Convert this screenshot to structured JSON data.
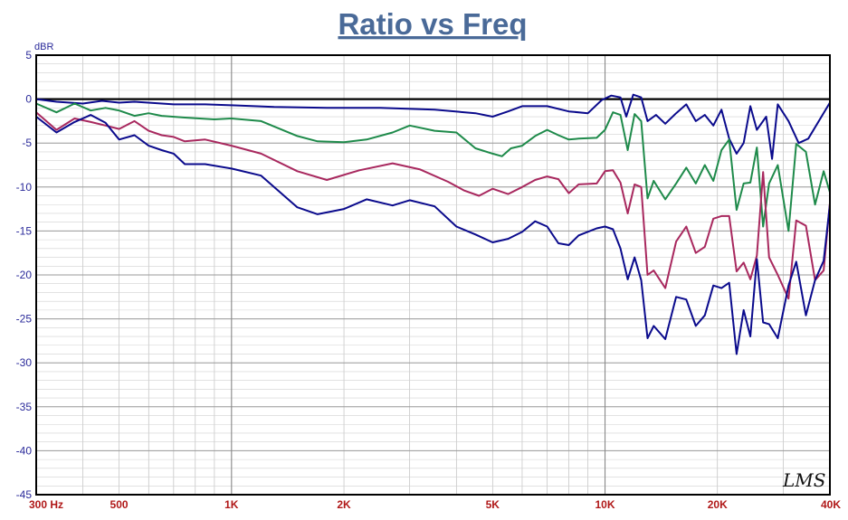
{
  "chart_data": {
    "type": "line",
    "title": "Ratio vs Freq",
    "ylabel": "dBR",
    "xlabel": "",
    "x_scale": "log",
    "xlim": [
      300,
      40000
    ],
    "ylim": [
      -45,
      5
    ],
    "grid": true,
    "y_ticks": [
      "5",
      "0",
      "-5",
      "-10",
      "-15",
      "-20",
      "-25",
      "-30",
      "-35",
      "-40",
      "-45"
    ],
    "x_ticks": [
      {
        "value": 300,
        "label": "300  Hz"
      },
      {
        "value": 500,
        "label": "500"
      },
      {
        "value": 1000,
        "label": "1K"
      },
      {
        "value": 2000,
        "label": "2K"
      },
      {
        "value": 5000,
        "label": "5K"
      },
      {
        "value": 10000,
        "label": "10K"
      },
      {
        "value": 20000,
        "label": "20K"
      },
      {
        "value": 40000,
        "label": "40K"
      }
    ],
    "logo_text": "LMS",
    "colors": {
      "title": "#4a6a98",
      "axis_labels": "#2a2a9a",
      "x_tick_labels": "#b01818",
      "grid": "#b4b4b4"
    },
    "series": [
      {
        "color": "#0a0a8c",
        "values": [
          [
            300,
            0
          ],
          [
            340,
            -0.3
          ],
          [
            400,
            -0.5
          ],
          [
            450,
            -0.2
          ],
          [
            500,
            -0.4
          ],
          [
            550,
            -0.3
          ],
          [
            700,
            -0.6
          ],
          [
            850,
            -0.6
          ],
          [
            1000,
            -0.7
          ],
          [
            1300,
            -0.9
          ],
          [
            1800,
            -1.0
          ],
          [
            2500,
            -1.0
          ],
          [
            3500,
            -1.2
          ],
          [
            4500,
            -1.6
          ],
          [
            5000,
            -2.0
          ],
          [
            5500,
            -1.4
          ],
          [
            6000,
            -0.8
          ],
          [
            7000,
            -0.8
          ],
          [
            8000,
            -1.4
          ],
          [
            9000,
            -1.6
          ],
          [
            9800,
            -0.1
          ],
          [
            10400,
            0.4
          ],
          [
            11000,
            0.2
          ],
          [
            11400,
            -2.0
          ],
          [
            11900,
            0.5
          ],
          [
            12500,
            0.2
          ],
          [
            13000,
            -2.5
          ],
          [
            13700,
            -1.8
          ],
          [
            14500,
            -2.8
          ],
          [
            15500,
            -1.6
          ],
          [
            16500,
            -0.6
          ],
          [
            17500,
            -2.5
          ],
          [
            18500,
            -1.8
          ],
          [
            19500,
            -3.0
          ],
          [
            20500,
            -1.2
          ],
          [
            21500,
            -4.5
          ],
          [
            22500,
            -6.2
          ],
          [
            23500,
            -5.0
          ],
          [
            24500,
            -0.8
          ],
          [
            25500,
            -3.5
          ],
          [
            27000,
            -2.0
          ],
          [
            28000,
            -6.8
          ],
          [
            29000,
            -0.6
          ],
          [
            31000,
            -2.5
          ],
          [
            33000,
            -5.0
          ],
          [
            35000,
            -4.5
          ],
          [
            40000,
            -0.4
          ]
        ]
      },
      {
        "color": "#1e8a4a",
        "values": [
          [
            300,
            -0.5
          ],
          [
            340,
            -1.5
          ],
          [
            380,
            -0.5
          ],
          [
            420,
            -1.3
          ],
          [
            460,
            -1.0
          ],
          [
            500,
            -1.3
          ],
          [
            550,
            -1.9
          ],
          [
            600,
            -1.6
          ],
          [
            650,
            -1.9
          ],
          [
            750,
            -2.1
          ],
          [
            900,
            -2.3
          ],
          [
            1000,
            -2.2
          ],
          [
            1200,
            -2.5
          ],
          [
            1500,
            -4.2
          ],
          [
            1700,
            -4.8
          ],
          [
            2000,
            -4.9
          ],
          [
            2300,
            -4.6
          ],
          [
            2700,
            -3.8
          ],
          [
            3000,
            -3.0
          ],
          [
            3500,
            -3.6
          ],
          [
            4000,
            -3.8
          ],
          [
            4500,
            -5.6
          ],
          [
            5000,
            -6.2
          ],
          [
            5300,
            -6.5
          ],
          [
            5600,
            -5.6
          ],
          [
            6000,
            -5.3
          ],
          [
            6500,
            -4.2
          ],
          [
            7000,
            -3.5
          ],
          [
            7500,
            -4.1
          ],
          [
            8000,
            -4.6
          ],
          [
            8500,
            -4.5
          ],
          [
            9500,
            -4.4
          ],
          [
            10000,
            -3.5
          ],
          [
            10500,
            -1.5
          ],
          [
            11000,
            -1.8
          ],
          [
            11500,
            -5.8
          ],
          [
            12000,
            -1.7
          ],
          [
            12500,
            -2.5
          ],
          [
            13000,
            -11.3
          ],
          [
            13500,
            -9.3
          ],
          [
            14500,
            -11.4
          ],
          [
            15500,
            -9.6
          ],
          [
            16500,
            -7.8
          ],
          [
            17500,
            -9.6
          ],
          [
            18500,
            -7.5
          ],
          [
            19500,
            -9.3
          ],
          [
            20500,
            -5.8
          ],
          [
            21500,
            -4.6
          ],
          [
            22500,
            -12.6
          ],
          [
            23500,
            -9.6
          ],
          [
            24500,
            -9.5
          ],
          [
            25500,
            -5.5
          ],
          [
            26500,
            -14.5
          ],
          [
            27500,
            -9.6
          ],
          [
            29000,
            -7.5
          ],
          [
            31000,
            -15.0
          ],
          [
            32500,
            -5.1
          ],
          [
            34500,
            -6.0
          ],
          [
            36500,
            -12.0
          ],
          [
            38500,
            -8.2
          ],
          [
            40000,
            -10.6
          ]
        ]
      },
      {
        "color": "#a8285e",
        "values": [
          [
            300,
            -1.5
          ],
          [
            340,
            -3.5
          ],
          [
            380,
            -2.2
          ],
          [
            420,
            -2.6
          ],
          [
            460,
            -3.0
          ],
          [
            500,
            -3.4
          ],
          [
            550,
            -2.5
          ],
          [
            600,
            -3.6
          ],
          [
            650,
            -4.1
          ],
          [
            700,
            -4.3
          ],
          [
            750,
            -4.8
          ],
          [
            850,
            -4.6
          ],
          [
            1000,
            -5.3
          ],
          [
            1200,
            -6.2
          ],
          [
            1500,
            -8.2
          ],
          [
            1800,
            -9.2
          ],
          [
            2200,
            -8.1
          ],
          [
            2700,
            -7.3
          ],
          [
            3200,
            -8.0
          ],
          [
            3800,
            -9.4
          ],
          [
            4200,
            -10.4
          ],
          [
            4600,
            -11.0
          ],
          [
            5000,
            -10.2
          ],
          [
            5500,
            -10.8
          ],
          [
            6000,
            -10.0
          ],
          [
            6500,
            -9.2
          ],
          [
            7000,
            -8.8
          ],
          [
            7500,
            -9.1
          ],
          [
            8000,
            -10.7
          ],
          [
            8500,
            -9.7
          ],
          [
            9500,
            -9.6
          ],
          [
            10000,
            -8.2
          ],
          [
            10500,
            -8.1
          ],
          [
            11000,
            -9.5
          ],
          [
            11500,
            -13.0
          ],
          [
            12000,
            -9.7
          ],
          [
            12500,
            -10.0
          ],
          [
            13000,
            -20.0
          ],
          [
            13500,
            -19.5
          ],
          [
            14500,
            -21.5
          ],
          [
            15500,
            -16.2
          ],
          [
            16500,
            -14.5
          ],
          [
            17500,
            -17.5
          ],
          [
            18500,
            -16.8
          ],
          [
            19500,
            -13.6
          ],
          [
            20500,
            -13.3
          ],
          [
            21500,
            -13.3
          ],
          [
            22500,
            -19.6
          ],
          [
            23500,
            -18.6
          ],
          [
            24500,
            -20.5
          ],
          [
            25500,
            -17.8
          ],
          [
            26500,
            -8.3
          ],
          [
            27500,
            -18.0
          ],
          [
            29000,
            -20.0
          ],
          [
            31000,
            -22.7
          ],
          [
            32500,
            -13.8
          ],
          [
            34500,
            -14.4
          ],
          [
            36500,
            -20.6
          ],
          [
            38500,
            -19.5
          ],
          [
            40000,
            -11.8
          ]
        ]
      },
      {
        "color": "#0a0a8c",
        "values": [
          [
            300,
            -2.0
          ],
          [
            340,
            -3.8
          ],
          [
            380,
            -2.6
          ],
          [
            420,
            -1.8
          ],
          [
            460,
            -2.7
          ],
          [
            500,
            -4.6
          ],
          [
            550,
            -4.1
          ],
          [
            600,
            -5.3
          ],
          [
            650,
            -5.8
          ],
          [
            700,
            -6.2
          ],
          [
            750,
            -7.4
          ],
          [
            850,
            -7.4
          ],
          [
            1000,
            -7.9
          ],
          [
            1200,
            -8.7
          ],
          [
            1500,
            -12.3
          ],
          [
            1700,
            -13.1
          ],
          [
            2000,
            -12.5
          ],
          [
            2300,
            -11.4
          ],
          [
            2700,
            -12.1
          ],
          [
            3000,
            -11.5
          ],
          [
            3500,
            -12.2
          ],
          [
            4000,
            -14.5
          ],
          [
            4500,
            -15.4
          ],
          [
            5000,
            -16.3
          ],
          [
            5500,
            -15.9
          ],
          [
            6000,
            -15.1
          ],
          [
            6500,
            -13.9
          ],
          [
            7000,
            -14.5
          ],
          [
            7500,
            -16.4
          ],
          [
            8000,
            -16.6
          ],
          [
            8500,
            -15.5
          ],
          [
            9500,
            -14.7
          ],
          [
            10000,
            -14.5
          ],
          [
            10500,
            -14.8
          ],
          [
            11000,
            -17.0
          ],
          [
            11500,
            -20.5
          ],
          [
            12000,
            -18.0
          ],
          [
            12500,
            -20.6
          ],
          [
            13000,
            -27.2
          ],
          [
            13500,
            -25.8
          ],
          [
            14500,
            -27.3
          ],
          [
            15500,
            -22.5
          ],
          [
            16500,
            -22.8
          ],
          [
            17500,
            -25.8
          ],
          [
            18500,
            -24.6
          ],
          [
            19500,
            -21.2
          ],
          [
            20500,
            -21.5
          ],
          [
            21500,
            -20.9
          ],
          [
            22500,
            -29.0
          ],
          [
            23500,
            -24.0
          ],
          [
            24500,
            -27.0
          ],
          [
            25500,
            -18.2
          ],
          [
            26500,
            -25.4
          ],
          [
            27500,
            -25.6
          ],
          [
            29000,
            -27.2
          ],
          [
            31000,
            -21.2
          ],
          [
            32500,
            -18.5
          ],
          [
            34500,
            -24.6
          ],
          [
            36500,
            -20.6
          ],
          [
            38500,
            -18.4
          ],
          [
            40000,
            -12.0
          ]
        ]
      }
    ]
  }
}
